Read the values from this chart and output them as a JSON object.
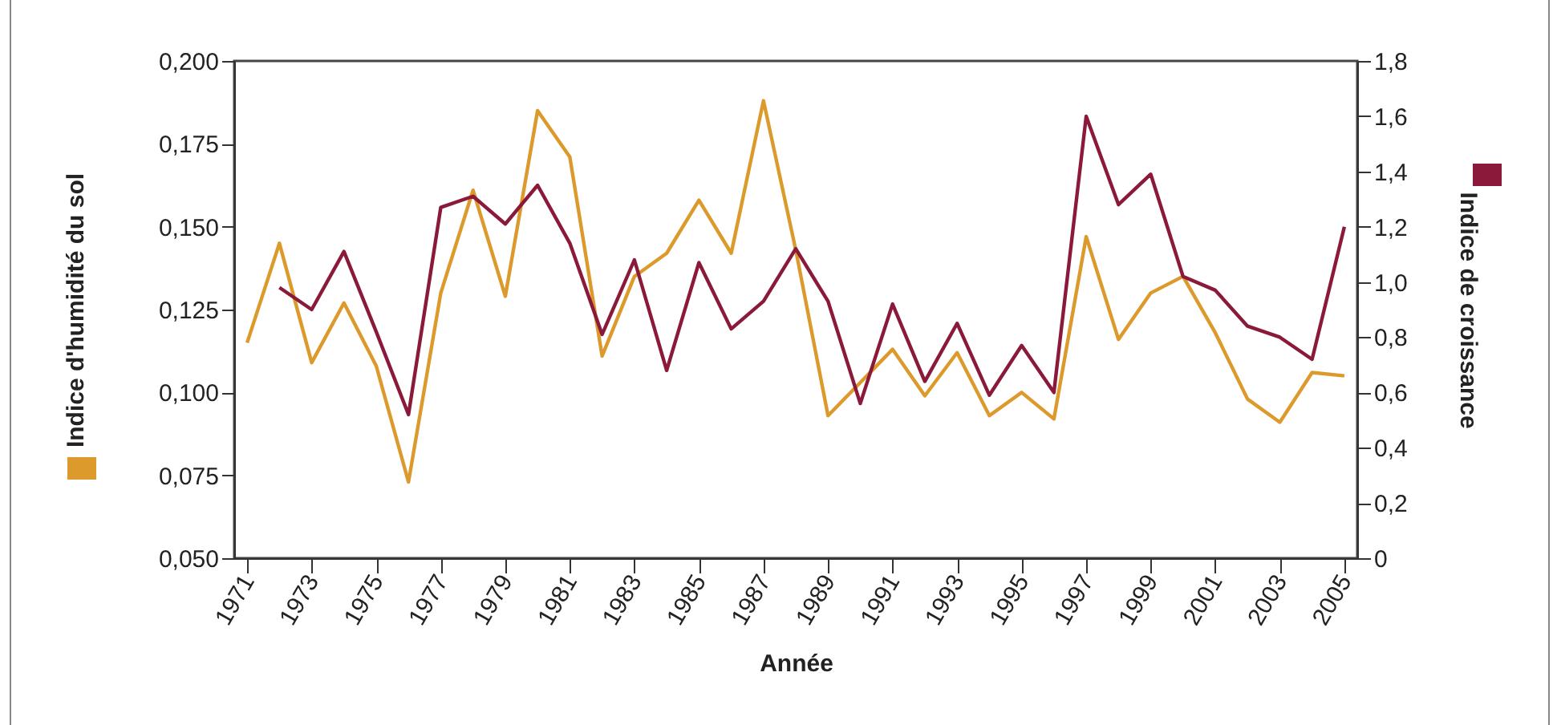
{
  "chart_data": {
    "type": "line",
    "xlabel": "Année",
    "ylabel": "Indice d'humidité du sol",
    "y2label": "Indice de croissance",
    "x": [
      1971,
      1972,
      1973,
      1974,
      1975,
      1976,
      1977,
      1978,
      1979,
      1980,
      1981,
      1982,
      1983,
      1984,
      1985,
      1986,
      1987,
      1988,
      1989,
      1990,
      1991,
      1992,
      1993,
      1994,
      1995,
      1996,
      1997,
      1998,
      1999,
      2000,
      2001,
      2002,
      2003,
      2004,
      2005
    ],
    "series": [
      {
        "color": "#dc9a2c",
        "values": [
          0.115,
          0.145,
          0.109,
          0.127,
          0.108,
          0.073,
          0.13,
          0.161,
          0.129,
          0.185,
          0.171,
          0.111,
          0.135,
          0.142,
          0.158,
          0.142,
          0.188,
          0.143,
          0.093,
          0.103,
          0.113,
          0.099,
          0.112,
          0.093,
          0.1,
          0.092,
          0.147,
          0.116,
          0.13,
          0.135,
          0.118,
          0.098,
          0.091,
          0.106,
          0.105
        ]
      },
      {
        "color": "#8b1a3a",
        "axis": "y2",
        "values": [
          null,
          0.98,
          0.9,
          1.11,
          0.82,
          0.52,
          1.27,
          1.31,
          1.21,
          1.35,
          1.14,
          0.81,
          1.08,
          0.68,
          1.07,
          0.83,
          0.93,
          1.12,
          0.93,
          0.56,
          0.92,
          0.64,
          0.85,
          0.59,
          0.77,
          0.6,
          1.6,
          1.28,
          1.39,
          1.02,
          0.97,
          0.84,
          0.8,
          0.72,
          1.2
        ]
      }
    ],
    "xlim": [
      1970.6,
      2005.4
    ],
    "xticks": [
      1971,
      1973,
      1975,
      1977,
      1979,
      1981,
      1983,
      1985,
      1987,
      1989,
      1991,
      1993,
      1995,
      1997,
      1999,
      2001,
      2003,
      2005
    ],
    "ylim": [
      0.05,
      0.2
    ],
    "yticks": [
      {
        "value": 0.05,
        "label": "0,050"
      },
      {
        "value": 0.075,
        "label": "0,075"
      },
      {
        "value": 0.1,
        "label": "0,100"
      },
      {
        "value": 0.125,
        "label": "0,125"
      },
      {
        "value": 0.15,
        "label": "0,150"
      },
      {
        "value": 0.175,
        "label": "0,175"
      },
      {
        "value": 0.2,
        "label": "0,200"
      }
    ],
    "y2lim": [
      0,
      1.8
    ],
    "y2ticks": [
      0,
      {
        "value": 0.2,
        "label": "0,2"
      },
      {
        "value": 0.4,
        "label": "0,4"
      },
      {
        "value": 0.6,
        "label": "0,6"
      },
      {
        "value": 0.8,
        "label": "0,8"
      },
      {
        "value": 1.0,
        "label": "1,0"
      },
      {
        "value": 1.2,
        "label": "1,2"
      },
      {
        "value": 1.4,
        "label": "1,4"
      },
      {
        "value": 1.6,
        "label": "1,6"
      },
      {
        "value": 1.8,
        "label": "1,8"
      }
    ]
  }
}
